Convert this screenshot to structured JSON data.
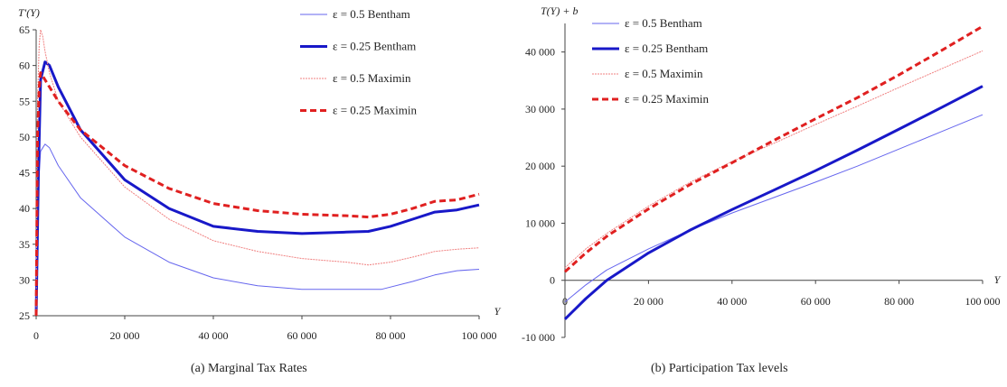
{
  "chart_data": [
    {
      "type": "line",
      "title": "(a) Marginal Tax Rates",
      "ylabel": "T'(Y)",
      "xlabel": "Y",
      "xlim": [
        0,
        100000
      ],
      "ylim": [
        25,
        65
      ],
      "xticks": [
        "0",
        "20 000",
        "40 000",
        "60 000",
        "80 000",
        "100 000"
      ],
      "yticks": [
        "25",
        "30",
        "35",
        "40",
        "45",
        "50",
        "55",
        "60",
        "65"
      ],
      "legend_position": "top-right",
      "series": [
        {
          "name": "ε = 0.5 Bentham",
          "color": "#6666ee",
          "width": 1,
          "dash": "",
          "x": [
            0,
            500,
            1000,
            2000,
            3000,
            5000,
            10000,
            20000,
            30000,
            40000,
            50000,
            60000,
            70000,
            78000,
            85000,
            90000,
            95000,
            100000
          ],
          "y": [
            25,
            43,
            48,
            49,
            48.5,
            46,
            41.5,
            36,
            32.5,
            30.3,
            29.2,
            28.7,
            28.7,
            28.7,
            29.8,
            30.7,
            31.3,
            31.5
          ]
        },
        {
          "name": "ε = 0.25 Bentham",
          "color": "#1818c8",
          "width": 3,
          "dash": "",
          "x": [
            0,
            500,
            1000,
            2000,
            3000,
            5000,
            10000,
            20000,
            30000,
            40000,
            50000,
            60000,
            70000,
            75000,
            80000,
            85000,
            90000,
            95000,
            100000
          ],
          "y": [
            25,
            45,
            58,
            60.5,
            60,
            57,
            51,
            44,
            40,
            37.5,
            36.8,
            36.5,
            36.7,
            36.8,
            37.5,
            38.5,
            39.5,
            39.8,
            40.5
          ]
        },
        {
          "name": "ε = 0.5 Maximin",
          "color": "#f08080",
          "width": 1,
          "dash": "2,1",
          "x": [
            0,
            300,
            700,
            1000,
            1500,
            2000,
            3000,
            5000,
            10000,
            20000,
            30000,
            40000,
            50000,
            60000,
            70000,
            75000,
            80000,
            85000,
            90000,
            95000,
            100000
          ],
          "y": [
            25,
            55,
            63,
            65,
            64,
            62,
            59,
            55,
            50,
            43,
            38.5,
            35.5,
            34,
            33,
            32.5,
            32.1,
            32.5,
            33.2,
            34,
            34.3,
            34.5
          ]
        },
        {
          "name": "ε = 0.25 Maximin",
          "color": "#e02020",
          "width": 3,
          "dash": "7,4",
          "x": [
            0,
            300,
            700,
            1000,
            1500,
            3000,
            5000,
            10000,
            20000,
            30000,
            40000,
            50000,
            60000,
            70000,
            75000,
            80000,
            85000,
            90000,
            95000,
            100000
          ],
          "y": [
            25,
            50,
            57,
            59,
            58.5,
            57,
            55,
            51,
            46,
            42.8,
            40.7,
            39.7,
            39.2,
            39,
            38.8,
            39.2,
            40,
            41,
            41.2,
            42
          ]
        }
      ]
    },
    {
      "type": "line",
      "title": "(b) Participation Tax levels",
      "ylabel": "T(Y) + b",
      "xlabel": "Y",
      "xlim": [
        0,
        100000
      ],
      "ylim": [
        -10000,
        45000
      ],
      "xticks": [
        "0",
        "20 000",
        "40 000",
        "60 000",
        "80 000",
        "100 000"
      ],
      "yticks": [
        "-10 000",
        "0",
        "10 000",
        "20 000",
        "30 000",
        "40 000"
      ],
      "legend_position": "top-left",
      "series": [
        {
          "name": "ε = 0.5 Bentham",
          "color": "#6666ee",
          "width": 1,
          "dash": "",
          "x": [
            0,
            5000,
            10000,
            20000,
            30000,
            40000,
            50000,
            60000,
            70000,
            80000,
            90000,
            100000
          ],
          "y": [
            -3800,
            -800,
            1800,
            5500,
            8800,
            11800,
            14500,
            17200,
            20000,
            23000,
            26000,
            29000
          ]
        },
        {
          "name": "ε = 0.25 Bentham",
          "color": "#1818c8",
          "width": 3,
          "dash": "",
          "x": [
            0,
            5000,
            10000,
            20000,
            30000,
            40000,
            50000,
            60000,
            70000,
            80000,
            90000,
            100000
          ],
          "y": [
            -6800,
            -3200,
            0,
            4800,
            8800,
            12400,
            15800,
            19200,
            22800,
            26500,
            30200,
            34000
          ]
        },
        {
          "name": "ε = 0.5 Maximin",
          "color": "#f08080",
          "width": 1,
          "dash": "2,1",
          "x": [
            0,
            5000,
            10000,
            20000,
            30000,
            40000,
            50000,
            60000,
            70000,
            80000,
            90000,
            100000
          ],
          "y": [
            2200,
            5500,
            8200,
            13000,
            17200,
            20800,
            24000,
            27300,
            30500,
            33800,
            37000,
            40200
          ]
        },
        {
          "name": "ε = 0.25 Maximin",
          "color": "#e02020",
          "width": 3,
          "dash": "7,4",
          "x": [
            0,
            5000,
            10000,
            20000,
            30000,
            40000,
            50000,
            60000,
            70000,
            80000,
            90000,
            100000
          ],
          "y": [
            1500,
            4800,
            7700,
            12500,
            16800,
            20600,
            24500,
            28300,
            32000,
            36000,
            40200,
            44500
          ]
        }
      ]
    }
  ]
}
